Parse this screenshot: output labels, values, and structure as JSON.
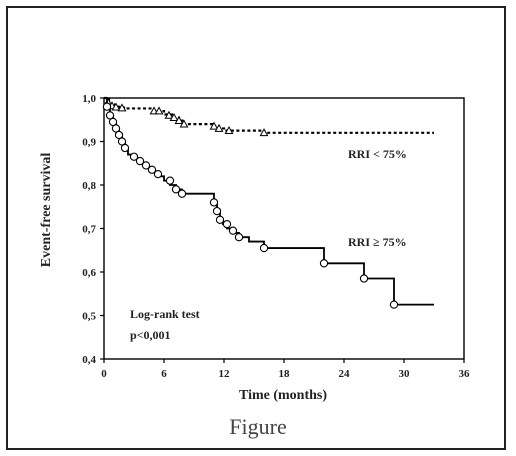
{
  "caption": "Figure",
  "colors": {
    "line": "#000000",
    "frame": "#222222"
  },
  "chart_data": {
    "type": "line",
    "title": "",
    "xlabel": "Time (months)",
    "ylabel": "Event-free survival",
    "xlim": [
      0,
      36
    ],
    "ylim": [
      0.4,
      1.0
    ],
    "x_ticks": [
      0,
      6,
      12,
      18,
      24,
      30,
      36
    ],
    "y_ticks": [
      0.4,
      0.5,
      0.6,
      0.7,
      0.8,
      0.9,
      1.0
    ],
    "x_tick_labels": [
      "0",
      "6",
      "12",
      "18",
      "24",
      "30",
      "36"
    ],
    "y_tick_labels": [
      "0,4",
      "0,5",
      "0,6",
      "0,7",
      "0,8",
      "0,9",
      "1,0"
    ],
    "grid": false,
    "series": [
      {
        "name": "RRI < 75%",
        "style": "dotted step",
        "marker": "triangle",
        "x": [
          0,
          0.5,
          1,
          1.5,
          2,
          5,
          6,
          7,
          7.5,
          8,
          11,
          11.5,
          12,
          16,
          33
        ],
        "y": [
          1.0,
          0.985,
          0.98,
          0.978,
          0.976,
          0.97,
          0.962,
          0.955,
          0.948,
          0.94,
          0.935,
          0.93,
          0.925,
          0.92,
          0.92
        ],
        "censored": [
          {
            "x": 0.4,
            "y": 0.99
          },
          {
            "x": 0.8,
            "y": 0.982
          },
          {
            "x": 1.2,
            "y": 0.979
          },
          {
            "x": 1.8,
            "y": 0.977
          },
          {
            "x": 5.0,
            "y": 0.97
          },
          {
            "x": 5.5,
            "y": 0.97
          },
          {
            "x": 6.5,
            "y": 0.96
          },
          {
            "x": 7.0,
            "y": 0.955
          },
          {
            "x": 7.5,
            "y": 0.948
          },
          {
            "x": 8.0,
            "y": 0.94
          },
          {
            "x": 11.0,
            "y": 0.935
          },
          {
            "x": 11.5,
            "y": 0.93
          },
          {
            "x": 12.5,
            "y": 0.925
          },
          {
            "x": 16.0,
            "y": 0.92
          }
        ]
      },
      {
        "name": "RRI ≥ 75%",
        "style": "solid step",
        "marker": "circle",
        "x": [
          0,
          0.3,
          0.6,
          0.9,
          1.2,
          1.5,
          1.8,
          2.1,
          2.4,
          3.0,
          3.6,
          4.2,
          4.8,
          5.4,
          6.0,
          6.6,
          7.2,
          7.8,
          11,
          11.3,
          11.6,
          11.9,
          12.3,
          12.9,
          13.5,
          14.5,
          16,
          22,
          26,
          29,
          33
        ],
        "y": [
          1.0,
          0.98,
          0.96,
          0.945,
          0.93,
          0.915,
          0.9,
          0.885,
          0.87,
          0.86,
          0.85,
          0.84,
          0.83,
          0.82,
          0.81,
          0.8,
          0.79,
          0.78,
          0.76,
          0.74,
          0.72,
          0.71,
          0.7,
          0.69,
          0.68,
          0.67,
          0.655,
          0.62,
          0.585,
          0.525,
          0.525
        ],
        "censored": [
          {
            "x": 0.3,
            "y": 0.98
          },
          {
            "x": 0.6,
            "y": 0.96
          },
          {
            "x": 0.9,
            "y": 0.945
          },
          {
            "x": 1.2,
            "y": 0.93
          },
          {
            "x": 1.5,
            "y": 0.915
          },
          {
            "x": 1.8,
            "y": 0.9
          },
          {
            "x": 2.1,
            "y": 0.885
          },
          {
            "x": 3.0,
            "y": 0.865
          },
          {
            "x": 3.6,
            "y": 0.855
          },
          {
            "x": 4.2,
            "y": 0.845
          },
          {
            "x": 4.8,
            "y": 0.835
          },
          {
            "x": 5.4,
            "y": 0.825
          },
          {
            "x": 6.6,
            "y": 0.81
          },
          {
            "x": 7.2,
            "y": 0.79
          },
          {
            "x": 7.8,
            "y": 0.78
          },
          {
            "x": 11.0,
            "y": 0.76
          },
          {
            "x": 11.3,
            "y": 0.74
          },
          {
            "x": 11.6,
            "y": 0.72
          },
          {
            "x": 12.3,
            "y": 0.71
          },
          {
            "x": 12.9,
            "y": 0.695
          },
          {
            "x": 13.5,
            "y": 0.68
          },
          {
            "x": 16.0,
            "y": 0.655
          },
          {
            "x": 22.0,
            "y": 0.62
          },
          {
            "x": 26.0,
            "y": 0.585
          },
          {
            "x": 29.0,
            "y": 0.525
          }
        ]
      }
    ],
    "annotations": {
      "series1_label": "RRI < 75%",
      "series2_label": "RRI ≥ 75%",
      "test_line1": "Log-rank test",
      "test_line2": "p<0,001"
    }
  }
}
